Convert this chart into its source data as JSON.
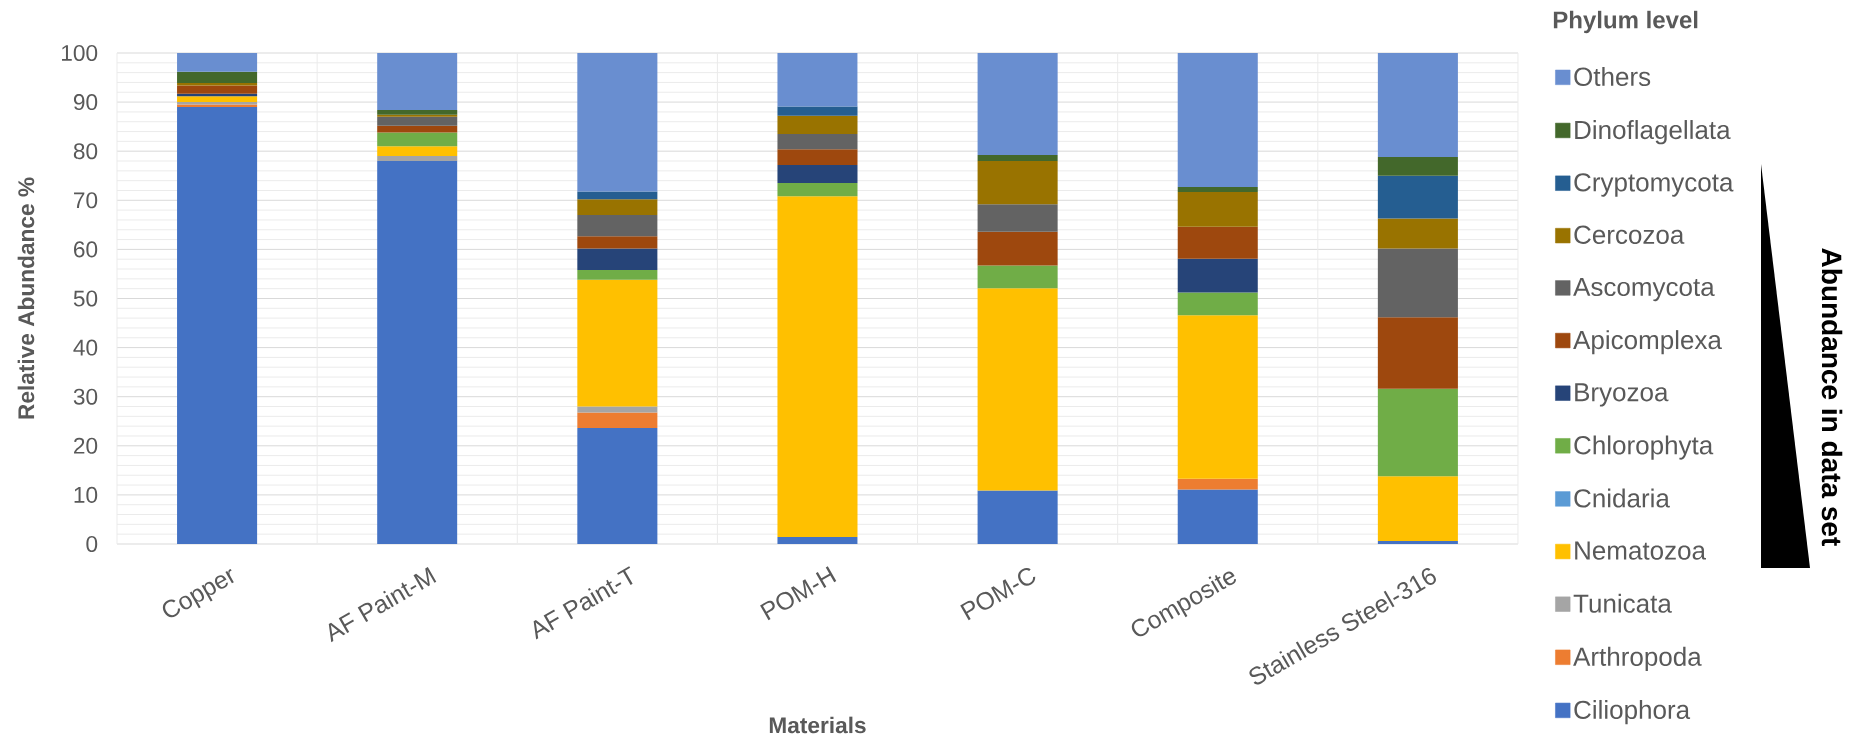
{
  "chart_data": {
    "type": "bar",
    "stacked": true,
    "categories": [
      "Copper",
      "AF Paint-M",
      "AF Paint-T",
      "POM-H",
      "POM-C",
      "Composite",
      "Stainless Steel-316"
    ],
    "series": [
      {
        "name": "Ciliophora",
        "color": "#4472c4",
        "values": [
          89,
          78,
          23.6,
          1.4,
          10.9,
          11.1,
          0.6
        ]
      },
      {
        "name": "Arthropoda",
        "color": "#ed7d31",
        "values": [
          0.5,
          0,
          3.2,
          0,
          0,
          2.2,
          0
        ]
      },
      {
        "name": "Tunicata",
        "color": "#a5a5a5",
        "values": [
          0.5,
          1,
          1.2,
          0,
          0,
          0,
          0
        ]
      },
      {
        "name": "Nematozoa",
        "color": "#ffc000",
        "values": [
          1.2,
          2,
          25.8,
          69.4,
          41.2,
          33.3,
          13.2
        ]
      },
      {
        "name": "Cnidaria",
        "color": "#5b9bd5",
        "values": [
          0,
          0,
          0,
          0,
          0,
          0,
          0
        ]
      },
      {
        "name": "Chlorophyta",
        "color": "#70ad47",
        "values": [
          0,
          2.8,
          2,
          2.7,
          4.6,
          4.6,
          17.8
        ]
      },
      {
        "name": "Bryozoa",
        "color": "#264478",
        "values": [
          0.5,
          0,
          4.4,
          3.7,
          0,
          6.9,
          0
        ]
      },
      {
        "name": "Apicomplexa",
        "color": "#9e480e",
        "values": [
          1.7,
          1.4,
          2.5,
          3.2,
          6.9,
          6.5,
          14.6
        ]
      },
      {
        "name": "Ascomycota",
        "color": "#636363",
        "values": [
          0,
          1.8,
          4.3,
          3.1,
          5.6,
          0,
          14
        ]
      },
      {
        "name": "Cercozoa",
        "color": "#997300",
        "values": [
          0.5,
          0.4,
          3.2,
          3.7,
          8.8,
          7.1,
          6.1
        ]
      },
      {
        "name": "Cryptomycota",
        "color": "#255e91",
        "values": [
          0,
          0,
          1.6,
          1.9,
          0,
          0,
          8.7
        ]
      },
      {
        "name": "Dinoflagellata",
        "color": "#43682b",
        "values": [
          2.3,
          1,
          0,
          0,
          1.2,
          1,
          3.8
        ]
      },
      {
        "name": "Others",
        "color": "#698ed0",
        "values": [
          3.8,
          11.6,
          28.2,
          10.9,
          20.8,
          27.3,
          21.2
        ]
      }
    ],
    "xlabel": "Materials",
    "ylabel": "Relative Abundance %",
    "legend_title": "Phylum level",
    "legend": "right",
    "annotations": [
      "Abundance in data set"
    ],
    "ylim": [
      0,
      100
    ],
    "yticks": [
      0,
      10,
      20,
      30,
      40,
      50,
      60,
      70,
      80,
      90,
      100
    ],
    "grid": true
  }
}
